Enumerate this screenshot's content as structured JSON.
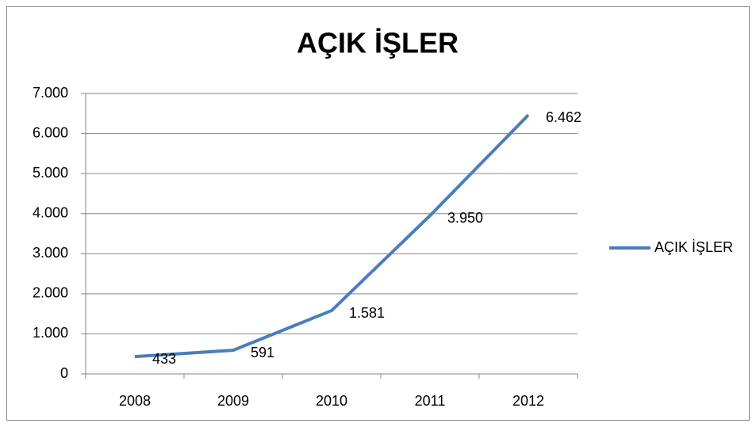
{
  "chart_data": {
    "type": "line",
    "title": "AÇIK İŞLER",
    "categories": [
      "2008",
      "2009",
      "2010",
      "2011",
      "2012"
    ],
    "series": [
      {
        "name": "AÇIK İŞLER",
        "color": "#4a7ebb",
        "values": [
          433,
          591,
          1581,
          3950,
          6462
        ],
        "value_labels": [
          "433",
          "591",
          "1.581",
          "3.950",
          "6.462"
        ]
      }
    ],
    "ylim": [
      0,
      7000
    ],
    "yticks": [
      0,
      {
        "value": 1000,
        "label": "1.000"
      },
      {
        "value": 2000,
        "label": "2.000"
      },
      {
        "value": 3000,
        "label": "3.000"
      },
      {
        "value": 4000,
        "label": "4.000"
      },
      {
        "value": 5000,
        "label": "5.000"
      },
      {
        "value": 6000,
        "label": "6.000"
      },
      {
        "value": 7000,
        "label": "7.000"
      }
    ],
    "grid": true,
    "legend": "right"
  }
}
